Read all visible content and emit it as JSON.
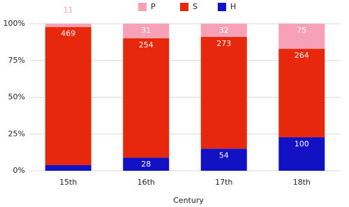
{
  "chart_data": {
    "type": "stacked_percent",
    "x_label": "Century",
    "categories": [
      "15th",
      "16th",
      "17th",
      "18th"
    ],
    "series": [
      {
        "name": "H",
        "color": "#1212c4",
        "values": [
          19,
          28,
          54,
          100
        ]
      },
      {
        "name": "S",
        "color": "#e8280c",
        "values": [
          469,
          254,
          273,
          264
        ]
      },
      {
        "name": "P",
        "color": "#f7a1b6",
        "values": [
          11,
          31,
          32,
          75
        ]
      }
    ],
    "legend_order": [
      "P",
      "S",
      "H"
    ],
    "ylim": [
      0,
      100
    ],
    "yticks": [
      {
        "value": 0,
        "label": "0%"
      },
      {
        "value": 25,
        "label": "25%"
      },
      {
        "value": 50,
        "label": "50%"
      },
      {
        "value": 75,
        "label": "75%"
      },
      {
        "value": 100,
        "label": "100%"
      }
    ],
    "grid": true
  }
}
